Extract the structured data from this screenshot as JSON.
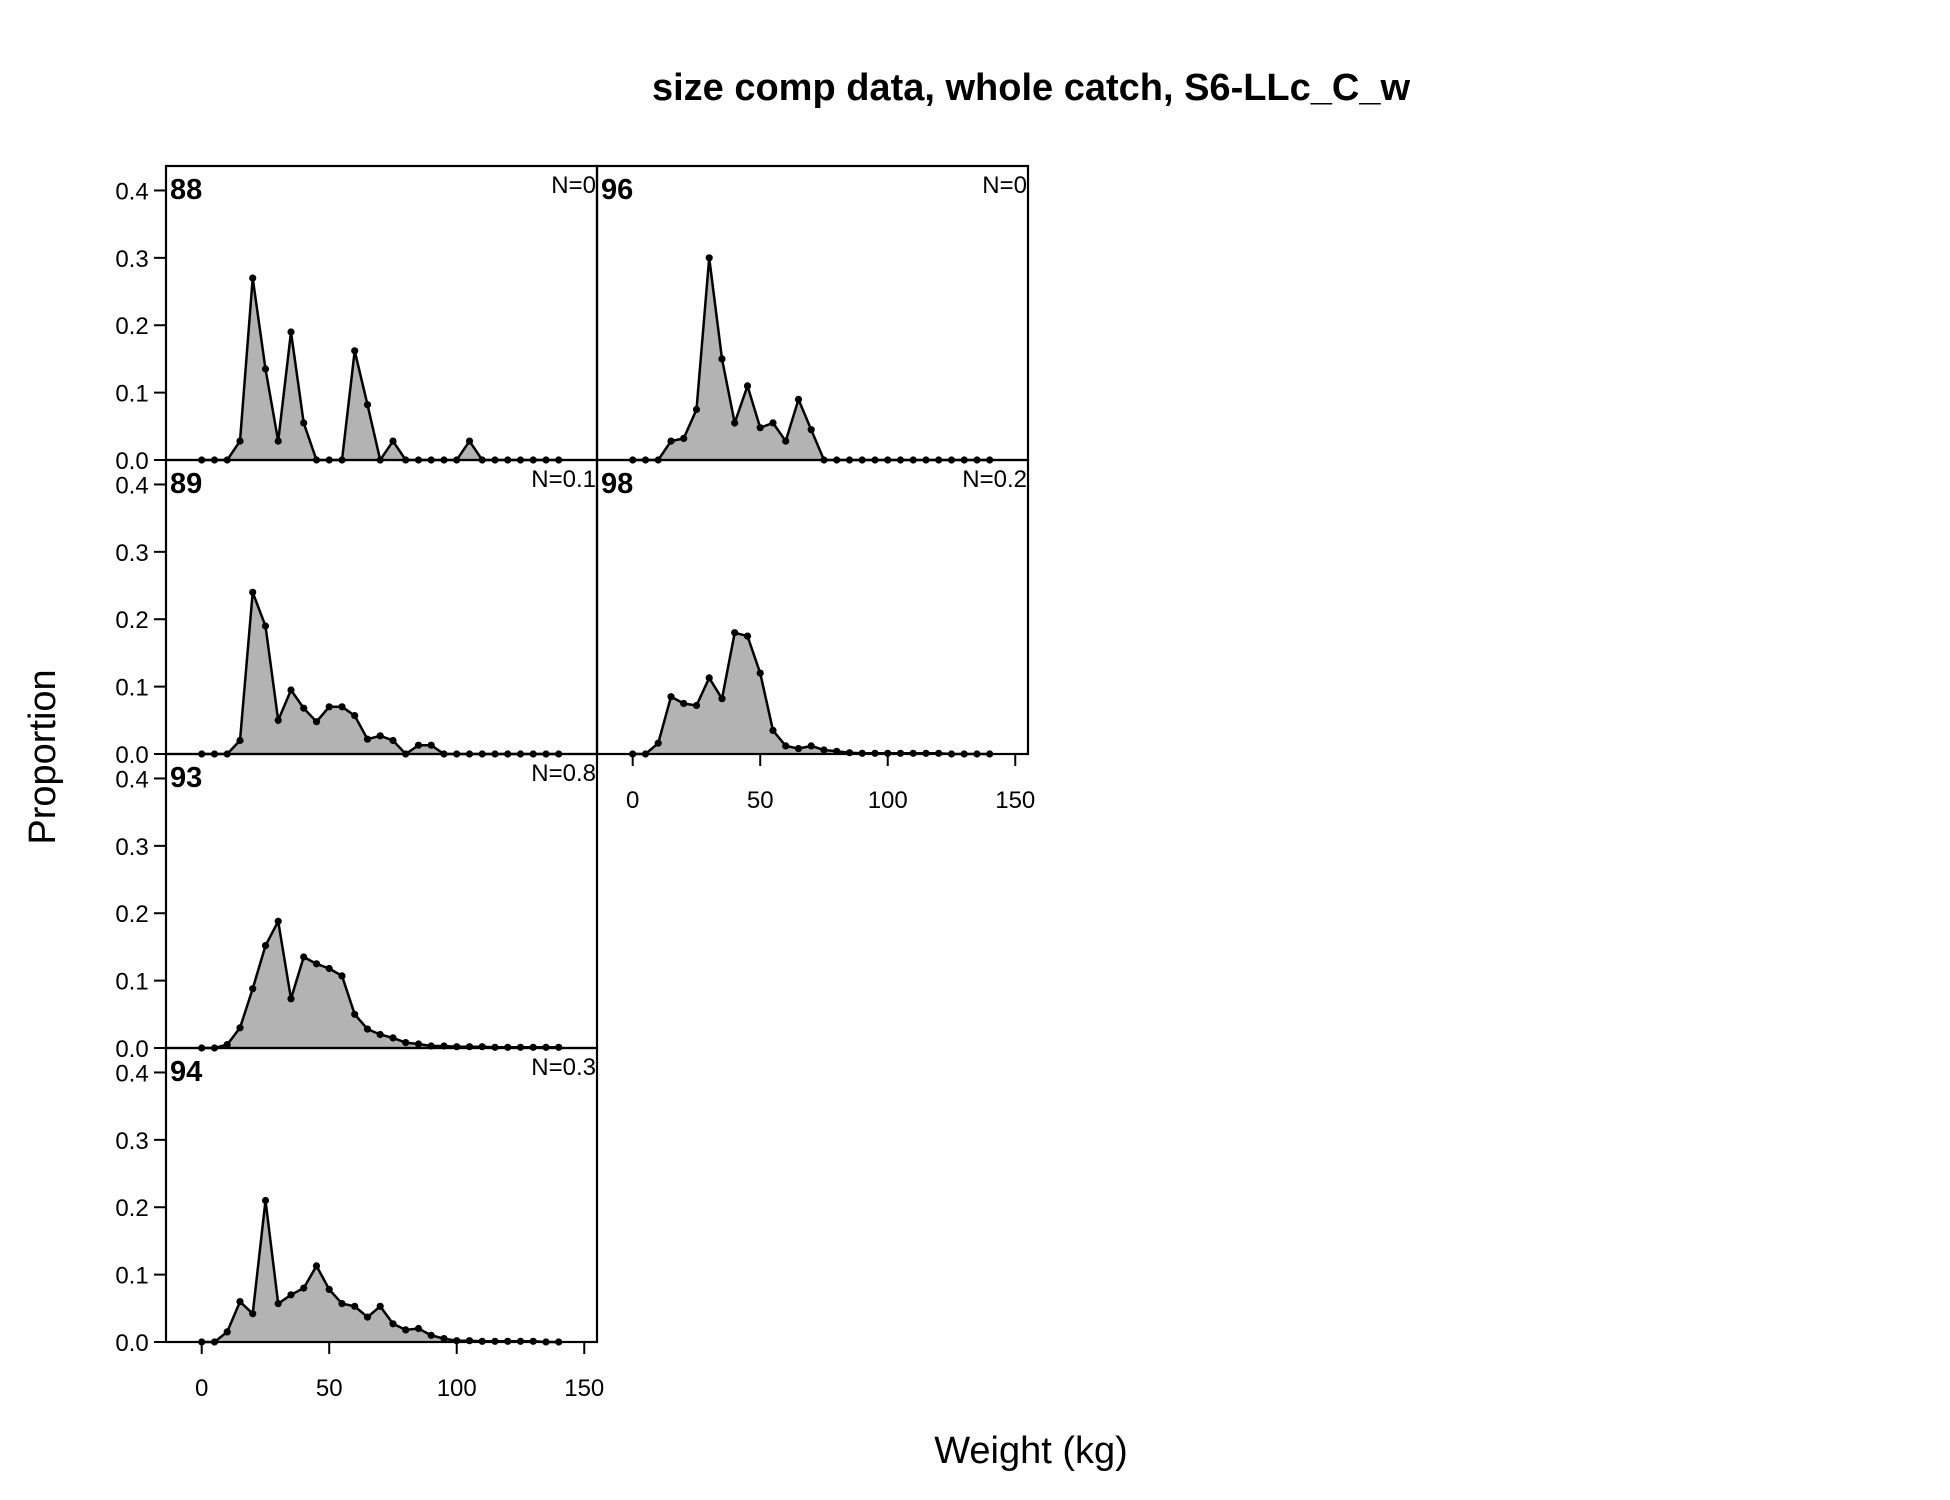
{
  "chart_data": {
    "type": "area",
    "title": "size comp data, whole catch, S6-LLc_C_w",
    "xlabel": "Weight (kg)",
    "ylabel": "Proportion",
    "xlim": [
      -14,
      155
    ],
    "ylim": [
      0,
      0.4363
    ],
    "x_ticks": [
      "0",
      "50",
      "100",
      "150"
    ],
    "y_ticks": [
      "0.0",
      "0.1",
      "0.2",
      "0.3",
      "0.4"
    ],
    "fill_color": "#b3b3b3",
    "line_color": "#000000",
    "x": [
      0,
      5,
      10,
      15,
      20,
      25,
      30,
      35,
      40,
      45,
      50,
      55,
      60,
      65,
      70,
      75,
      80,
      85,
      90,
      95,
      100,
      105,
      110,
      115,
      120,
      125,
      130,
      135,
      140
    ],
    "panels": [
      {
        "label": "88",
        "n_label": "N=0",
        "values": [
          0,
          0,
          0,
          0.028,
          0.27,
          0.135,
          0.028,
          0.19,
          0.055,
          0,
          0,
          0,
          0.162,
          0.082,
          0,
          0.028,
          0,
          0,
          0,
          0,
          0,
          0.028,
          0,
          0,
          0,
          0,
          0,
          0,
          0
        ]
      },
      {
        "label": "89",
        "n_label": "N=0.1",
        "values": [
          0,
          0,
          0,
          0.02,
          0.24,
          0.19,
          0.05,
          0.095,
          0.068,
          0.048,
          0.07,
          0.07,
          0.057,
          0.022,
          0.027,
          0.02,
          0,
          0.013,
          0.013,
          0,
          0,
          0,
          0,
          0,
          0,
          0,
          0,
          0,
          0
        ]
      },
      {
        "label": "93",
        "n_label": "N=0.8",
        "values": [
          0,
          0,
          0.005,
          0.03,
          0.088,
          0.152,
          0.188,
          0.073,
          0.135,
          0.125,
          0.118,
          0.107,
          0.05,
          0.028,
          0.02,
          0.015,
          0.008,
          0.006,
          0.003,
          0.003,
          0.002,
          0.002,
          0.002,
          0.001,
          0.001,
          0.001,
          0.001,
          0.001,
          0.001
        ]
      },
      {
        "label": "94",
        "n_label": "N=0.3",
        "values": [
          0,
          0,
          0.015,
          0.06,
          0.042,
          0.21,
          0.057,
          0.07,
          0.08,
          0.113,
          0.078,
          0.057,
          0.053,
          0.037,
          0.053,
          0.027,
          0.018,
          0.02,
          0.01,
          0.005,
          0.002,
          0.002,
          0.001,
          0.001,
          0.001,
          0.001,
          0.001,
          0,
          0
        ]
      },
      {
        "label": "96",
        "n_label": "N=0",
        "values": [
          0,
          0,
          0,
          0.028,
          0.032,
          0.075,
          0.3,
          0.15,
          0.055,
          0.11,
          0.048,
          0.055,
          0.028,
          0.09,
          0.045,
          0,
          0,
          0,
          0,
          0,
          0,
          0,
          0,
          0,
          0,
          0,
          0,
          0,
          0
        ]
      },
      {
        "label": "98",
        "n_label": "N=0.2",
        "values": [
          0,
          0,
          0.016,
          0.085,
          0.075,
          0.072,
          0.113,
          0.082,
          0.18,
          0.175,
          0.12,
          0.035,
          0.012,
          0.008,
          0.012,
          0.006,
          0.004,
          0.002,
          0.001,
          0.001,
          0.001,
          0.001,
          0.001,
          0.001,
          0.001,
          0,
          0,
          0,
          0
        ]
      }
    ]
  }
}
